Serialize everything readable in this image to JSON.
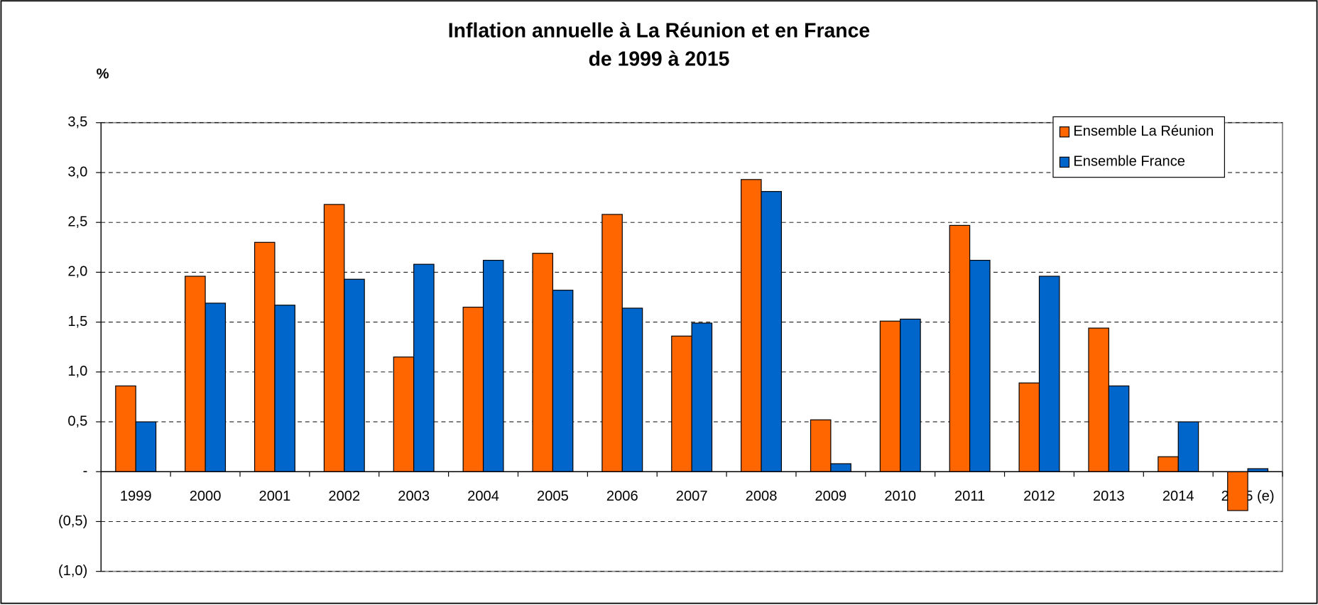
{
  "chart_data": {
    "type": "bar",
    "title": "Inflation annuelle à La Réunion et en France",
    "subtitle": "de 1999 à 2015",
    "y_label": "%",
    "categories": [
      "1999",
      "2000",
      "2001",
      "2002",
      "2003",
      "2004",
      "2005",
      "2006",
      "2007",
      "2008",
      "2009",
      "2010",
      "2011",
      "2012",
      "2013",
      "2014",
      "2015 (e)"
    ],
    "series": [
      {
        "name": "Ensemble La Réunion",
        "color": "#ff6600",
        "values": [
          0.86,
          1.96,
          2.3,
          2.68,
          1.15,
          1.65,
          2.19,
          2.58,
          1.36,
          2.93,
          0.52,
          1.51,
          2.47,
          0.89,
          1.44,
          0.15,
          -0.39
        ]
      },
      {
        "name": "Ensemble France",
        "color": "#0066cc",
        "values": [
          0.5,
          1.69,
          1.67,
          1.93,
          2.08,
          2.12,
          1.82,
          1.64,
          1.49,
          2.81,
          0.08,
          1.53,
          2.12,
          1.96,
          0.86,
          0.5,
          0.03
        ]
      }
    ],
    "ylim": [
      -1,
      3.5
    ],
    "yticks": [
      {
        "value": 3.5,
        "label": "3,5"
      },
      {
        "value": 3,
        "label": "3,0"
      },
      {
        "value": 2.5,
        "label": "2,5"
      },
      {
        "value": 2,
        "label": "2,0"
      },
      {
        "value": 1.5,
        "label": "1,5"
      },
      {
        "value": 1,
        "label": "1,0"
      },
      {
        "value": 0.5,
        "label": "0,5"
      },
      {
        "value": 0,
        "label": "-"
      },
      {
        "value": -0.5,
        "label": "(0,5)"
      },
      {
        "value": -1,
        "label": "(1,0)"
      }
    ],
    "grid": true,
    "legend": "top-right"
  }
}
